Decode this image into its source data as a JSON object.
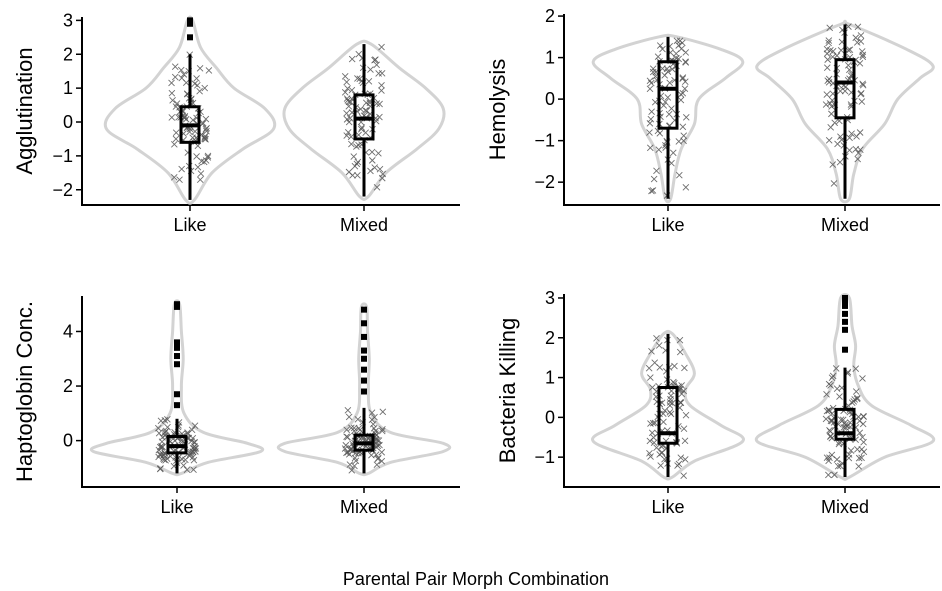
{
  "figure": {
    "xlabel": "Parental Pair Morph Combination"
  },
  "chart_data": [
    {
      "type": "violin",
      "ylabel": "Agglutination",
      "categories": [
        "Like",
        "Mixed"
      ],
      "ylim": [
        -2.45,
        3.1
      ],
      "yticks": [
        -2,
        -1,
        0,
        1,
        2,
        3
      ],
      "boxplot": [
        {
          "category": "Like",
          "min": -2.3,
          "q1": -0.6,
          "median": -0.1,
          "q3": 0.45,
          "max": 2.0,
          "outliers": [
            2.5,
            2.9,
            3.0
          ]
        },
        {
          "category": "Mixed",
          "min": -2.2,
          "q1": -0.5,
          "median": 0.1,
          "q3": 0.8,
          "max": 2.3,
          "outliers": []
        }
      ],
      "violin_widths": [
        {
          "category": "Like",
          "y": [
            -2.3,
            -1.5,
            -0.8,
            -0.2,
            0.4,
            1.0,
            1.6,
            2.2,
            3.0
          ],
          "w": [
            0.05,
            0.25,
            0.6,
            0.95,
            0.85,
            0.5,
            0.3,
            0.12,
            0.03
          ]
        },
        {
          "category": "Mixed",
          "y": [
            -2.2,
            -1.5,
            -0.8,
            -0.2,
            0.4,
            1.0,
            1.6,
            2.3
          ],
          "w": [
            0.05,
            0.25,
            0.6,
            0.85,
            0.9,
            0.7,
            0.4,
            0.08
          ]
        }
      ]
    },
    {
      "type": "violin",
      "ylabel": "Hemolysis",
      "categories": [
        "Like",
        "Mixed"
      ],
      "ylim": [
        -2.55,
        2.05
      ],
      "yticks": [
        -2,
        -1,
        0,
        1,
        2
      ],
      "boxplot": [
        {
          "category": "Like",
          "min": -2.4,
          "q1": -0.7,
          "median": 0.25,
          "q3": 0.9,
          "max": 1.5,
          "outliers": []
        },
        {
          "category": "Mixed",
          "min": -2.4,
          "q1": -0.45,
          "median": 0.4,
          "q3": 0.95,
          "max": 1.8,
          "outliers": []
        }
      ],
      "violin_widths": [
        {
          "category": "Like",
          "y": [
            -2.4,
            -1.8,
            -1.2,
            -0.6,
            0.0,
            0.5,
            0.9,
            1.2,
            1.5
          ],
          "w": [
            0.03,
            0.08,
            0.15,
            0.3,
            0.35,
            0.65,
            0.85,
            0.6,
            0.1
          ]
        },
        {
          "category": "Mixed",
          "y": [
            -2.4,
            -1.8,
            -1.2,
            -0.6,
            0.0,
            0.5,
            0.8,
            1.2,
            1.8
          ],
          "w": [
            0.05,
            0.1,
            0.2,
            0.45,
            0.6,
            0.85,
            1.0,
            0.7,
            0.05
          ]
        }
      ]
    },
    {
      "type": "violin",
      "ylabel": "Haptoglobin Conc.",
      "categories": [
        "Like",
        "Mixed"
      ],
      "ylim": [
        -1.7,
        5.3
      ],
      "yticks": [
        0,
        2,
        4
      ],
      "boxplot": [
        {
          "category": "Like",
          "min": -1.2,
          "q1": -0.45,
          "median": -0.2,
          "q3": 0.15,
          "max": 0.8,
          "outliers": [
            1.3,
            1.7,
            2.8,
            3.1,
            3.4,
            3.6,
            4.9,
            5.0
          ]
        },
        {
          "category": "Mixed",
          "min": -1.2,
          "q1": -0.35,
          "median": -0.1,
          "q3": 0.2,
          "max": 1.2,
          "outliers": [
            1.8,
            2.2,
            2.6,
            3.0,
            3.3,
            3.8,
            4.3,
            4.8
          ]
        }
      ],
      "violin_widths": [
        {
          "category": "Like",
          "y": [
            -1.2,
            -0.8,
            -0.4,
            -0.1,
            0.3,
            1.0,
            2.0,
            3.0,
            4.0,
            5.0
          ],
          "w": [
            0.05,
            0.35,
            0.95,
            0.8,
            0.3,
            0.08,
            0.05,
            0.07,
            0.05,
            0.03
          ]
        },
        {
          "category": "Mixed",
          "y": [
            -1.2,
            -0.8,
            -0.4,
            -0.1,
            0.3,
            1.0,
            2.0,
            3.0,
            4.0,
            4.9
          ],
          "w": [
            0.05,
            0.3,
            0.9,
            0.9,
            0.3,
            0.08,
            0.05,
            0.06,
            0.04,
            0.03
          ]
        }
      ]
    },
    {
      "type": "violin",
      "ylabel": "Bacteria Killing",
      "categories": [
        "Like",
        "Mixed"
      ],
      "ylim": [
        -1.75,
        3.1
      ],
      "yticks": [
        -1,
        0,
        1,
        2,
        3
      ],
      "boxplot": [
        {
          "category": "Like",
          "min": -1.5,
          "q1": -0.65,
          "median": -0.4,
          "q3": 0.75,
          "max": 2.1,
          "outliers": []
        },
        {
          "category": "Mixed",
          "min": -1.5,
          "q1": -0.55,
          "median": -0.4,
          "q3": 0.2,
          "max": 1.25,
          "outliers": [
            1.7,
            2.2,
            2.4,
            2.6,
            2.8,
            2.9,
            3.0
          ]
        }
      ],
      "violin_widths": [
        {
          "category": "Like",
          "y": [
            -1.5,
            -1.1,
            -0.6,
            -0.2,
            0.3,
            0.7,
            1.1,
            1.6,
            2.1
          ],
          "w": [
            0.05,
            0.3,
            0.85,
            0.6,
            0.25,
            0.2,
            0.3,
            0.2,
            0.05
          ]
        },
        {
          "category": "Mixed",
          "y": [
            -1.5,
            -1.0,
            -0.6,
            -0.2,
            0.3,
            0.8,
            1.3,
            1.8,
            2.3,
            3.0
          ],
          "w": [
            0.05,
            0.45,
            1.0,
            0.75,
            0.3,
            0.15,
            0.1,
            0.12,
            0.08,
            0.05
          ]
        }
      ]
    }
  ]
}
